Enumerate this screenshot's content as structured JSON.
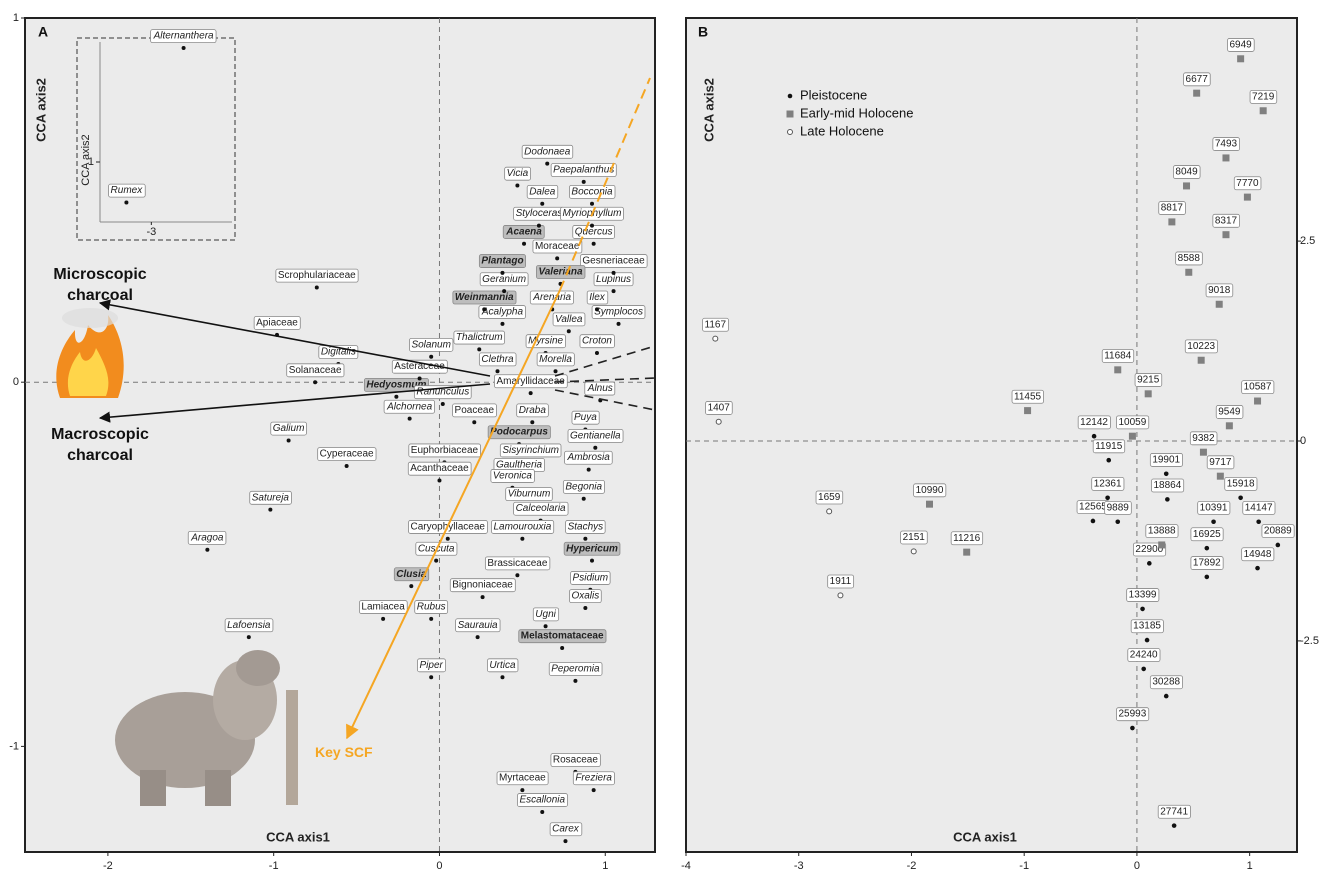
{
  "chart_data": [
    {
      "type": "scatter",
      "panel": "A",
      "x_label": "CCA axis1",
      "y_label": "CCA axis2",
      "annotations": [
        "Microscopic charcoal",
        "Macroscopic charcoal",
        "Key SCF"
      ],
      "labels": [
        "Scrophulariaceae",
        "Apiaceae",
        "Digitalis",
        "Solanaceae",
        "Hedyosmum",
        "Alchornea",
        "Ranunculus",
        "Asteraceae",
        "Solanum",
        "Amaryllidaceae",
        "Thalictrum",
        "Clethra",
        "Myrsine",
        "Morella",
        "Alnus",
        "Croton",
        "Vallea",
        "Symplocos",
        "Ilex",
        "Lupinus",
        "Gesneriaceae",
        "Acalypha",
        "Arenaria",
        "Weinmannia",
        "Geranium",
        "Valeriana",
        "Plantago",
        "Moraceae",
        "Acaena",
        "Quercus",
        "Styloceras",
        "Myriophyllum",
        "Dalea",
        "Bocconia",
        "Vicia",
        "Paepalanthus",
        "Dodonaea",
        "Poaceae",
        "Draba",
        "Puya",
        "Gentianella",
        "Podocarpus",
        "Euphorbiaceae",
        "Sisyrinchium",
        "Gaultheria",
        "Ambrosia",
        "Acanthaceae",
        "Veronica",
        "Viburnum",
        "Begonia",
        "Calceolaria",
        "Caryophyllaceae",
        "Lamourouxia",
        "Stachys",
        "Hypericum",
        "Cuscuta",
        "Brassicaceae",
        "Psidium",
        "Clusia",
        "Bignoniaceae",
        "Oxalis",
        "Lamiacea",
        "Rubus",
        "Saurauia",
        "Ugni",
        "Melastomataceae",
        "Piper",
        "Urtica",
        "Peperomia",
        "Rosaceae",
        "Myrtaceae",
        "Freziera",
        "Escallonia",
        "Carex",
        "Galium",
        "Cyperaceae",
        "Satureja",
        "Aragoa",
        "Lafoensia"
      ],
      "x": [
        -0.74,
        -0.98,
        -0.61,
        -0.75,
        -0.26,
        -0.18,
        0.02,
        -0.12,
        -0.05,
        0.55,
        0.24,
        0.35,
        0.64,
        0.7,
        0.97,
        0.95,
        0.78,
        1.08,
        0.95,
        1.05,
        1.05,
        0.38,
        0.68,
        0.27,
        0.39,
        0.73,
        0.38,
        0.71,
        0.51,
        0.93,
        0.6,
        0.92,
        0.62,
        0.92,
        0.47,
        0.87,
        0.65,
        0.21,
        0.56,
        0.88,
        0.94,
        0.48,
        0.03,
        0.55,
        0.48,
        0.9,
        0.0,
        0.44,
        0.54,
        0.87,
        0.61,
        0.05,
        0.5,
        0.88,
        0.92,
        -0.02,
        0.47,
        0.91,
        -0.17,
        0.26,
        0.88,
        -0.34,
        -0.05,
        0.23,
        0.64,
        0.74,
        -0.05,
        0.38,
        0.82,
        0.82,
        0.5,
        0.93,
        0.62,
        0.76,
        -0.91,
        -0.56,
        -1.02,
        -1.4,
        -1.15
      ],
      "y": [
        0.26,
        0.13,
        0.05,
        0.0,
        -0.04,
        -0.1,
        -0.06,
        0.01,
        0.07,
        -0.03,
        0.09,
        0.03,
        0.08,
        0.03,
        -0.05,
        0.08,
        0.14,
        0.16,
        0.2,
        0.25,
        0.3,
        0.16,
        0.2,
        0.2,
        0.25,
        0.27,
        0.3,
        0.34,
        0.38,
        0.38,
        0.43,
        0.43,
        0.49,
        0.49,
        0.54,
        0.55,
        0.6,
        -0.11,
        -0.11,
        -0.13,
        -0.18,
        -0.17,
        -0.22,
        -0.22,
        -0.26,
        -0.24,
        -0.27,
        -0.29,
        -0.34,
        -0.32,
        -0.38,
        -0.43,
        -0.43,
        -0.43,
        -0.49,
        -0.49,
        -0.53,
        -0.57,
        -0.56,
        -0.59,
        -0.62,
        -0.65,
        -0.65,
        -0.7,
        -0.67,
        -0.73,
        -0.81,
        -0.81,
        -0.82,
        -1.07,
        -1.12,
        -1.12,
        -1.18,
        -1.26,
        -0.16,
        -0.23,
        -0.35,
        -0.46,
        -0.7
      ],
      "bold": [
        false,
        false,
        false,
        false,
        true,
        false,
        false,
        false,
        false,
        false,
        false,
        false,
        false,
        false,
        false,
        false,
        false,
        false,
        false,
        false,
        false,
        false,
        false,
        true,
        false,
        true,
        true,
        false,
        true,
        false,
        false,
        false,
        false,
        false,
        false,
        false,
        false,
        false,
        false,
        false,
        false,
        true,
        false,
        false,
        false,
        false,
        false,
        false,
        false,
        false,
        false,
        false,
        false,
        false,
        true,
        false,
        false,
        false,
        true,
        false,
        false,
        false,
        false,
        false,
        false,
        true,
        false,
        false,
        false,
        false,
        false,
        false,
        false,
        false,
        false,
        false,
        false,
        false,
        false
      ],
      "xlim": [
        -2.5,
        1.3
      ],
      "ylim": [
        -1.29,
        1
      ],
      "xticks": [
        -2,
        -1,
        0,
        1
      ],
      "yticks": [
        -1,
        0,
        1
      ],
      "zero_lines": true,
      "y_axis_side": "left"
    },
    {
      "type": "scatter",
      "y_label": "CCA axis2",
      "labels": [
        "Alternanthera",
        "Rumex"
      ],
      "x": [
        -2.78,
        -3.17
      ],
      "y": [
        1.76,
        0.73
      ],
      "xlim": [
        -3.35,
        -2.45
      ],
      "ylim": [
        0.6,
        1.8
      ],
      "xticks": [
        -3
      ],
      "yticks": [
        1
      ],
      "zero_lines": false,
      "y_axis_side": "left"
    },
    {
      "type": "scatter",
      "panel": "B",
      "x_label": "CCA axis1",
      "y_label": "CCA axis2",
      "legend": "upper left",
      "xlim": [
        -4,
        1.42
      ],
      "ylim": [
        -5.14,
        5.29
      ],
      "xticks": [
        -4,
        -3,
        -2,
        -1,
        0,
        1
      ],
      "yticks": [
        -2.5,
        0,
        2.5
      ],
      "zero_lines": true,
      "y_axis_side": "right",
      "series": [
        {
          "name": "Pleistocene",
          "marker": "circle",
          "color": "#111111",
          "labels": [
            "12142",
            "11915",
            "12361",
            "12565",
            "9889",
            "19901",
            "18864",
            "15918",
            "14147",
            "20889",
            "16925",
            "14948",
            "17892",
            "22900",
            "10391",
            "13399",
            "13185",
            "24240",
            "30288",
            "25993",
            "27741"
          ],
          "x": [
            -0.38,
            -0.25,
            -0.26,
            -0.39,
            -0.17,
            0.26,
            0.27,
            0.92,
            1.08,
            1.25,
            0.62,
            1.07,
            0.62,
            0.11,
            0.68,
            0.05,
            0.09,
            0.06,
            0.26,
            -0.04,
            0.33
          ],
          "y": [
            0.06,
            -0.24,
            -0.71,
            -1.0,
            -1.01,
            -0.41,
            -0.73,
            -0.71,
            -1.01,
            -1.3,
            -1.34,
            -1.59,
            -1.7,
            -1.53,
            -1.01,
            -2.1,
            -2.49,
            -2.85,
            -3.19,
            -3.59,
            -4.81
          ]
        },
        {
          "name": "Early-mid Holocene",
          "marker": "square",
          "color": "#808080",
          "labels": [
            "6949",
            "6677",
            "7219",
            "7493",
            "8049",
            "7770",
            "8817",
            "8317",
            "8588",
            "9018",
            "10223",
            "11684",
            "9215",
            "10587",
            "9549",
            "10059",
            "9382",
            "9717",
            "11455",
            "10990",
            "11216",
            "13888"
          ],
          "x": [
            0.92,
            0.53,
            1.12,
            0.79,
            0.44,
            0.98,
            0.31,
            0.79,
            0.46,
            0.73,
            0.57,
            -0.17,
            0.1,
            1.07,
            0.82,
            -0.04,
            0.59,
            0.74,
            -0.97,
            -1.84,
            -1.51,
            0.22
          ],
          "y": [
            4.78,
            4.35,
            4.13,
            3.54,
            3.19,
            3.05,
            2.74,
            2.58,
            2.11,
            1.71,
            1.01,
            0.89,
            0.59,
            0.5,
            0.19,
            0.06,
            -0.14,
            -0.44,
            0.38,
            -0.79,
            -1.39,
            -1.3
          ]
        },
        {
          "name": "Late Holocene",
          "marker": "open-circle",
          "color": "#555555",
          "labels": [
            "1167",
            "1407",
            "1659",
            "2151",
            "1911"
          ],
          "x": [
            -3.74,
            -3.71,
            -2.73,
            -1.98,
            -2.63
          ],
          "y": [
            1.28,
            0.24,
            -0.88,
            -1.38,
            -1.93
          ]
        }
      ]
    }
  ]
}
